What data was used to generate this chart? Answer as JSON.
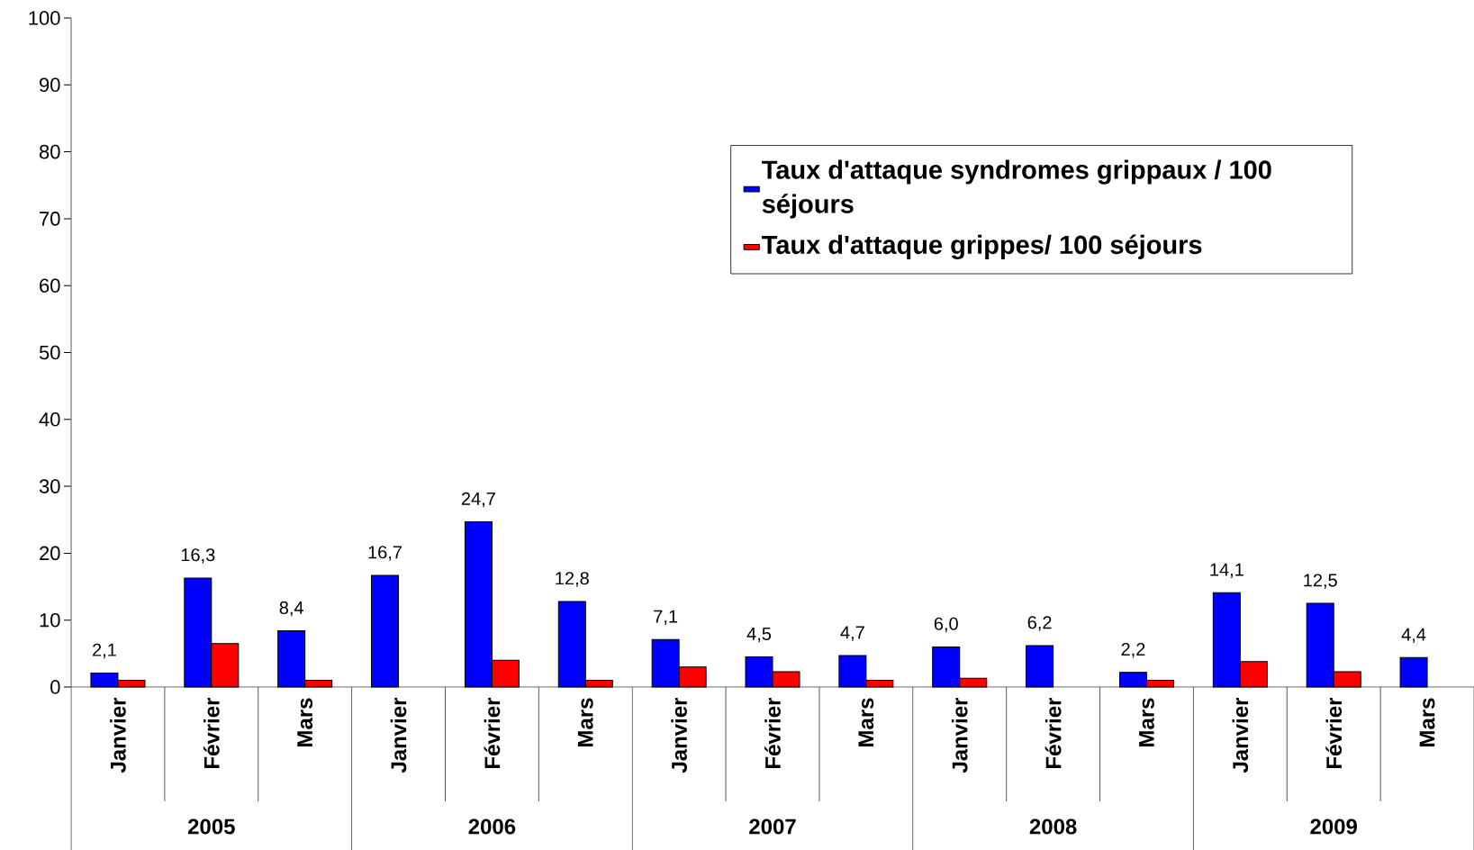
{
  "chart_data": {
    "type": "bar",
    "categories": [
      "Janvier",
      "Février",
      "Mars",
      "Janvier",
      "Février",
      "Mars",
      "Janvier",
      "Février",
      "Mars",
      "Janvier",
      "Février",
      "Mars",
      "Janvier",
      "Février",
      "Mars"
    ],
    "series": [
      {
        "name": "Taux d'attaque syndromes grippaux / 100 séjours",
        "color": "#0000ff",
        "values": [
          2.1,
          16.3,
          8.4,
          16.7,
          24.7,
          12.8,
          7.1,
          4.5,
          4.7,
          6.0,
          6.2,
          2.2,
          14.1,
          12.5,
          4.4
        ],
        "value_labels": [
          "2,1",
          "16,3",
          "8,4",
          "16,7",
          "24,7",
          "12,8",
          "7,1",
          "4,5",
          "4,7",
          "6,0",
          "6,2",
          "2,2",
          "14,1",
          "12,5",
          "4,4"
        ]
      },
      {
        "name": "Taux d'attaque grippes/ 100 séjours",
        "color": "#ff0000",
        "values": [
          1.0,
          6.5,
          1.0,
          null,
          4.0,
          1.0,
          3.0,
          2.3,
          1.0,
          1.3,
          null,
          1.0,
          3.8,
          2.3,
          null
        ]
      }
    ],
    "annotations": [
      "2005",
      "2006",
      "2007",
      "2008",
      "2009"
    ],
    "ylim": [
      0,
      100
    ],
    "yticks": [
      0,
      10,
      20,
      30,
      40,
      50,
      60,
      70,
      80,
      90,
      100
    ],
    "legend": "top right"
  }
}
